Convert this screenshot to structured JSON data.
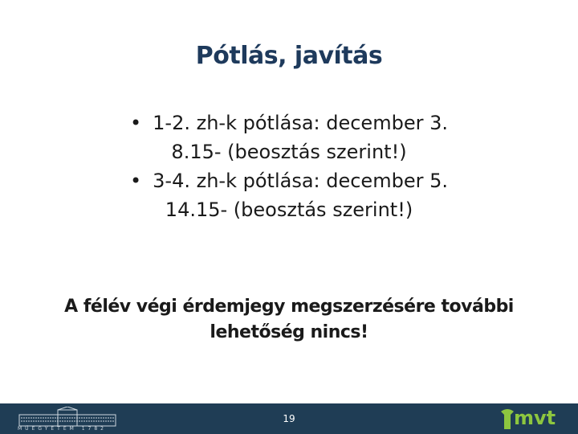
{
  "title": "Pótlás, javítás",
  "bullets": [
    {
      "line1": "1-2. zh-k pótlása: december 3.",
      "line2": "8.15- (beosztás szerint!)"
    },
    {
      "line1": "3-4. zh-k pótlása: december 5.",
      "line2": "14.15- (beosztás szerint!)"
    }
  ],
  "bullet_char": "•",
  "note": {
    "line1": "A félév végi érdemjegy megszerzésére további",
    "line2": "lehetőség nincs!"
  },
  "footer": {
    "page_number": "19",
    "left_logo_text": "MŰEGYETEM 1782",
    "right_logo_text": "mvt",
    "background": "#1f3d55"
  }
}
